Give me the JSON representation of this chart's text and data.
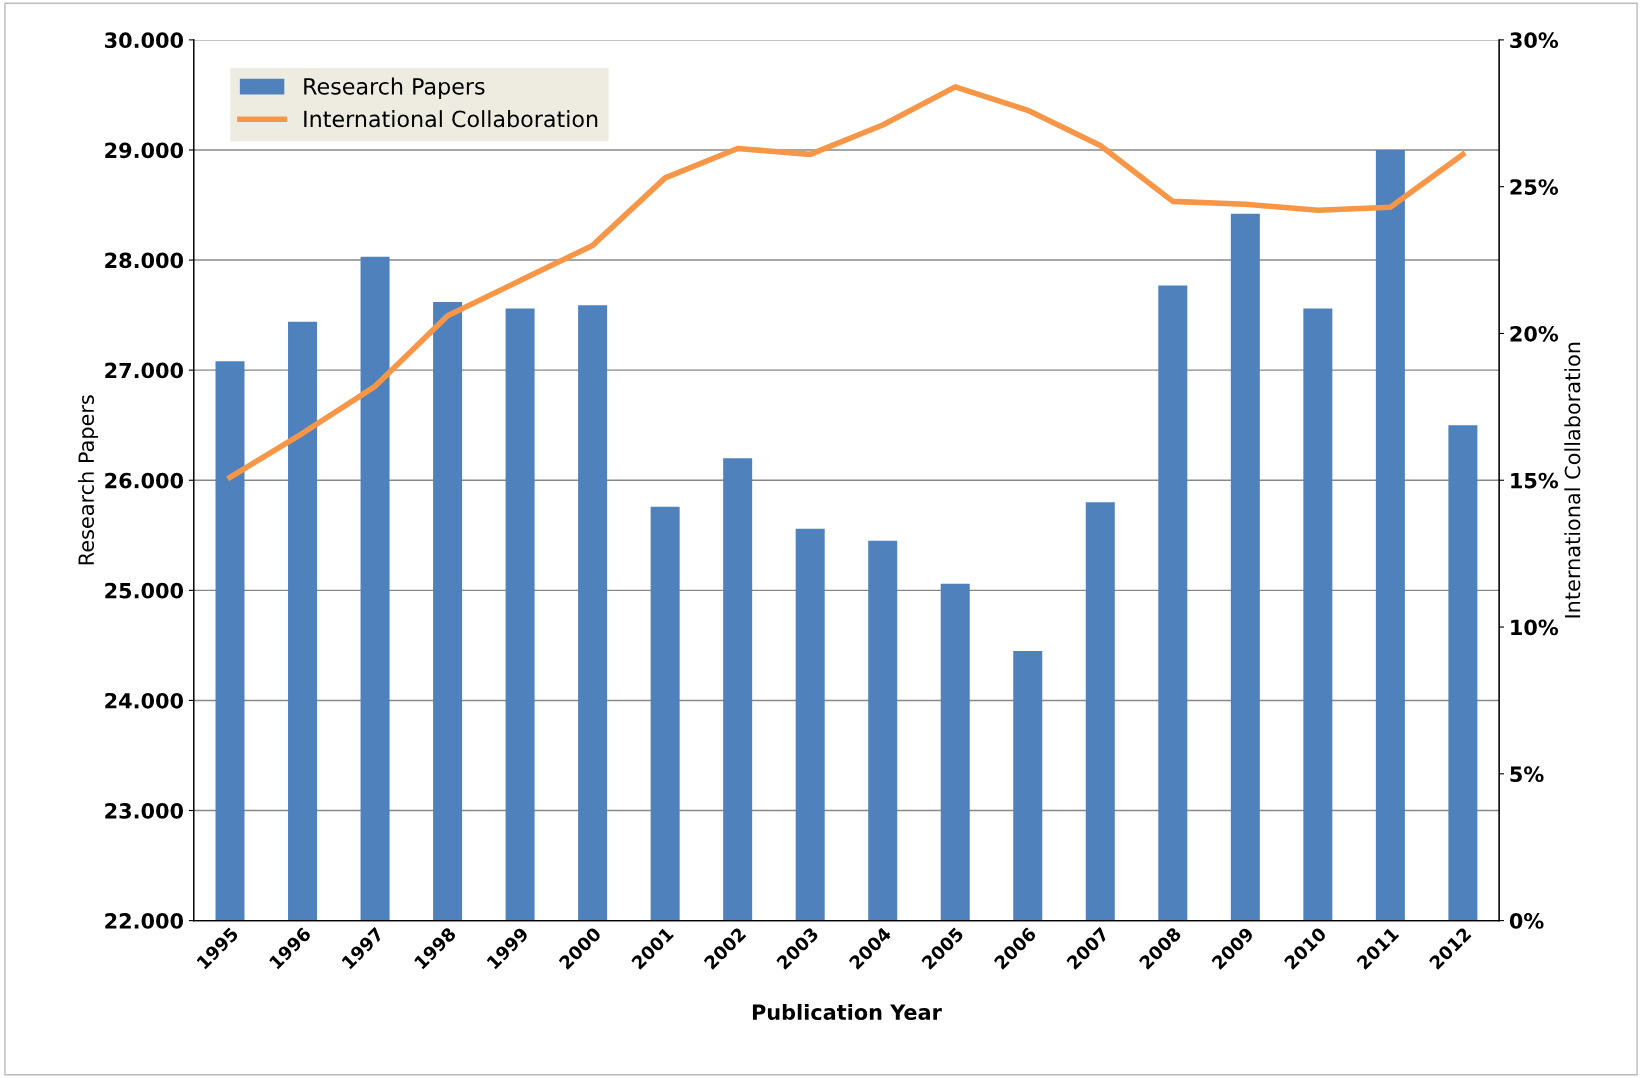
{
  "chart_data": {
    "type": "bar",
    "xlabel": "Publication Year",
    "ylabel": "Research Papers",
    "y2label": "International Collaboration",
    "categories": [
      "1995",
      "1996",
      "1997",
      "1998",
      "1999",
      "2000",
      "2001",
      "2002",
      "2003",
      "2004",
      "2005",
      "2006",
      "2007",
      "2008",
      "2009",
      "2010",
      "2011",
      "2012"
    ],
    "series": [
      {
        "name": "Research Papers",
        "color": "#4f81bd",
        "values": [
          27080,
          27440,
          28030,
          27620,
          27560,
          27590,
          25760,
          26200,
          25560,
          25450,
          25060,
          24450,
          25800,
          27770,
          28420,
          27560,
          29000,
          26500
        ]
      },
      {
        "name": "International Collaboration",
        "type": "line",
        "axis": "y2",
        "color": "#f79646",
        "values": [
          15.1,
          16.6,
          18.2,
          20.6,
          21.8,
          23.0,
          25.3,
          26.3,
          26.1,
          27.1,
          28.4,
          27.6,
          26.4,
          24.5,
          24.4,
          24.2,
          24.3,
          26.1
        ]
      }
    ],
    "ylim": [
      22000,
      30000
    ],
    "yticks": [
      {
        "value": 22000,
        "label": "22.000"
      },
      {
        "value": 23000,
        "label": "23.000"
      },
      {
        "value": 24000,
        "label": "24.000"
      },
      {
        "value": 25000,
        "label": "25.000"
      },
      {
        "value": 26000,
        "label": "26.000"
      },
      {
        "value": 27000,
        "label": "27.000"
      },
      {
        "value": 28000,
        "label": "28.000"
      },
      {
        "value": 29000,
        "label": "29.000"
      },
      {
        "value": 30000,
        "label": "30.000"
      }
    ],
    "y2lim": [
      0,
      30
    ],
    "y2ticks": [
      {
        "value": 0,
        "label": "0%"
      },
      {
        "value": 5,
        "label": "5%"
      },
      {
        "value": 10,
        "label": "10%"
      },
      {
        "value": 15,
        "label": "15%"
      },
      {
        "value": 20,
        "label": "20%"
      },
      {
        "value": 25,
        "label": "25%"
      },
      {
        "value": 30,
        "label": "30%"
      }
    ],
    "grid": "y",
    "legend": "top left",
    "marker": "none",
    "line_style": "solid"
  }
}
